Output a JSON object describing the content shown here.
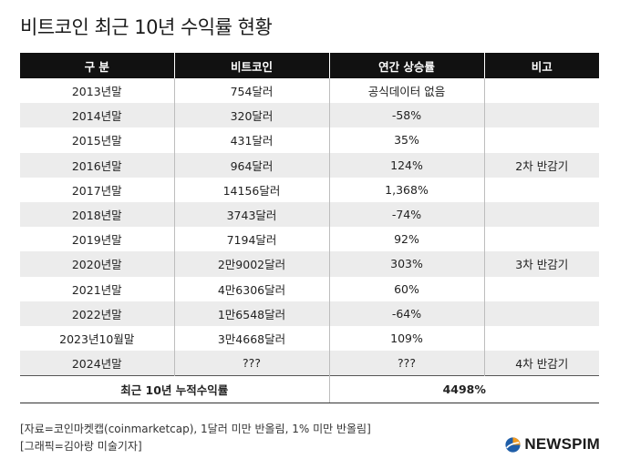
{
  "title": "비트코인 최근 10년 수익률 현황",
  "table": {
    "headers": [
      "구  분",
      "비트코인",
      "연간 상승률",
      "비고"
    ],
    "rows": [
      {
        "year": "2013년말",
        "price": "754달러",
        "rate": "공식데이터 없음",
        "note": ""
      },
      {
        "year": "2014년말",
        "price": "320달러",
        "rate": "-58%",
        "note": ""
      },
      {
        "year": "2015년말",
        "price": "431달러",
        "rate": "35%",
        "note": ""
      },
      {
        "year": "2016년말",
        "price": "964달러",
        "rate": "124%",
        "note": "2차 반감기"
      },
      {
        "year": "2017년말",
        "price": "14156달러",
        "rate": "1,368%",
        "note": ""
      },
      {
        "year": "2018년말",
        "price": "3743달러",
        "rate": "-74%",
        "note": ""
      },
      {
        "year": "2019년말",
        "price": "7194달러",
        "rate": "92%",
        "note": ""
      },
      {
        "year": "2020년말",
        "price": "2만9002달러",
        "rate": "303%",
        "note": "3차 반감기"
      },
      {
        "year": "2021년말",
        "price": "4만6306달러",
        "rate": "60%",
        "note": ""
      },
      {
        "year": "2022년말",
        "price": "1만6548달러",
        "rate": "-64%",
        "note": ""
      },
      {
        "year": "2023년10월말",
        "price": "3만4668달러",
        "rate": "109%",
        "note": ""
      },
      {
        "year": "2024년말",
        "price": "???",
        "rate": "???",
        "note": "4차 반감기"
      }
    ],
    "total": {
      "label": "최근 10년 누적수익률",
      "value": "4498%"
    }
  },
  "notes": {
    "source": "[자료=코인마켓캡(coinmarketcap), 1달러 미만 반올림, 1% 미만 반올림]",
    "graphic": "[그래픽=김아랑 미술기자]"
  },
  "logo": {
    "text": "NEWSPIM",
    "icon": "newspim-logo-icon",
    "colors": {
      "blue": "#1f5ea8",
      "orange": "#f29a1f"
    }
  },
  "colors": {
    "header_bg": "#111111",
    "row_shade": "#ececec"
  }
}
